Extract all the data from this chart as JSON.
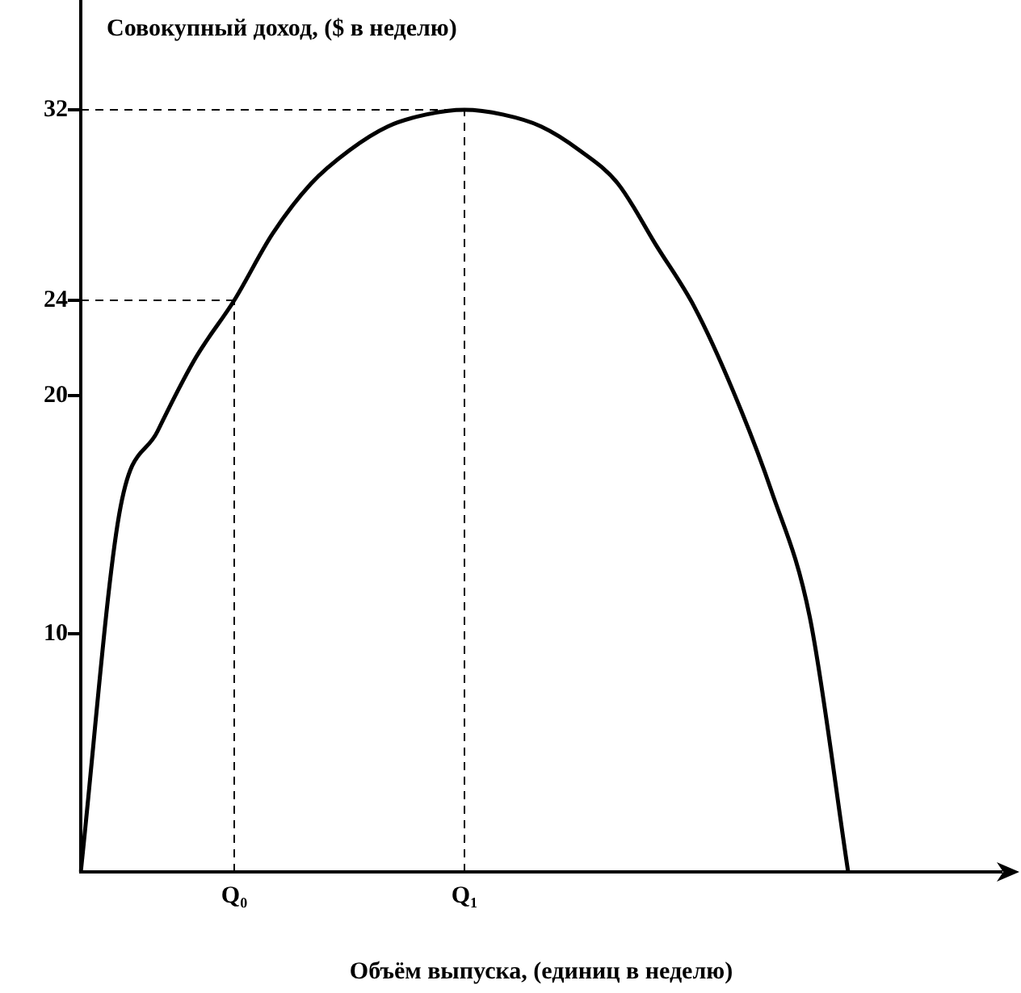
{
  "chart_data": {
    "type": "line",
    "xlabel": "Объём выпуска, (единиц в неделю)",
    "ylabel": "Совокупный доход, ($ в неделю)",
    "categories": [
      null,
      null,
      null,
      null,
      "Q₀",
      null,
      null,
      null,
      null,
      null,
      "Q₁",
      null,
      null,
      null,
      null,
      null,
      null,
      null,
      null,
      null,
      null,
      null,
      null,
      null,
      null
    ],
    "series": [
      {
        "color": "#000000",
        "values": [
          0,
          15,
          18.5,
          21.6,
          24,
          26.8,
          28.9,
          30.3,
          31.3,
          31.8,
          32,
          31.8,
          31.3,
          30.3,
          28.9,
          26.3,
          23.7,
          20.2,
          16,
          10.7,
          0,
          null,
          null,
          null,
          null
        ]
      }
    ],
    "ylim": [
      0,
      36
    ],
    "yticks": [
      10,
      20,
      24,
      32
    ],
    "grid": false,
    "legend": false,
    "marker": "none",
    "line_style": "solid",
    "ref_lines": [
      {
        "axis": "y",
        "value": 24,
        "line_style": "dashed"
      },
      {
        "axis": "y",
        "value": 32,
        "line_style": "dashed"
      },
      {
        "axis": "x",
        "value": "Q₀",
        "line_style": "dashed"
      },
      {
        "axis": "x",
        "value": "Q₁",
        "line_style": "dashed"
      }
    ]
  }
}
